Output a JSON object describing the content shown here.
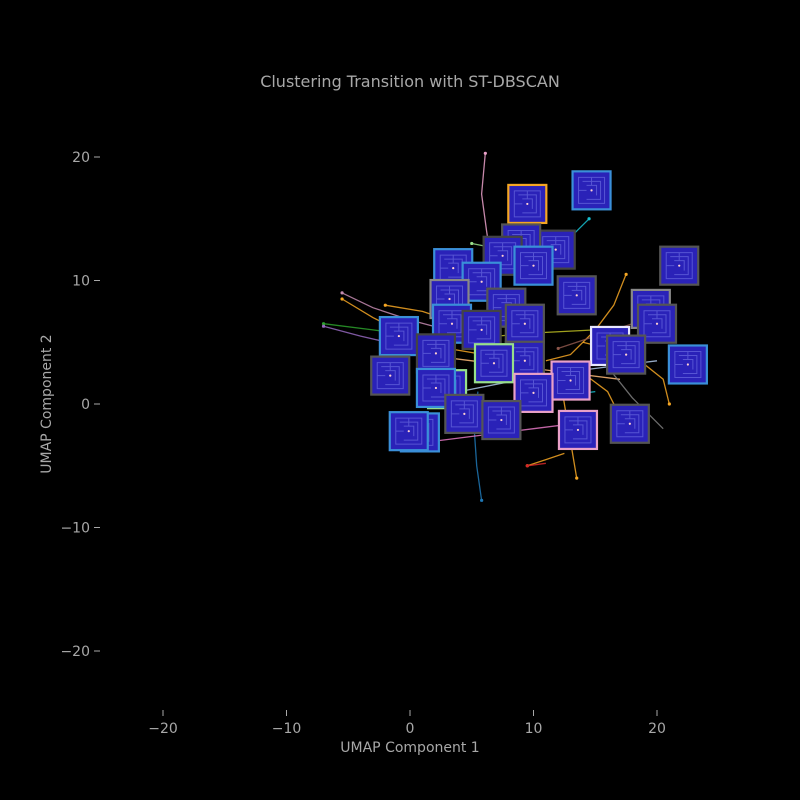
{
  "chart_data": {
    "type": "scatter",
    "title": "Clustering Transition with ST-DBSCAN",
    "xlabel": "UMAP Component 1",
    "ylabel": "UMAP Component 2",
    "xlim": [
      -25,
      25
    ],
    "ylim": [
      -25,
      25
    ],
    "xticks": [
      -20,
      -10,
      0,
      10,
      20
    ],
    "yticks": [
      -20,
      -10,
      0,
      10,
      20
    ],
    "xtick_labels": [
      "−20",
      "−10",
      "0",
      "10",
      "20"
    ],
    "ytick_labels": [
      "−20",
      "−10",
      "0",
      "10",
      "20"
    ],
    "grid": false,
    "background": "#000000",
    "text_color": "#a8a8a8",
    "thumbnail_fill": "#2a22b8",
    "trajectories": [
      {
        "color": "#f5a623",
        "points": [
          [
            -5.5,
            8.5
          ],
          [
            -3,
            7
          ],
          [
            0,
            5.5
          ],
          [
            3,
            4.5
          ],
          [
            6,
            4
          ]
        ]
      },
      {
        "color": "#f5a623",
        "points": [
          [
            17.5,
            10.5
          ],
          [
            16.5,
            8
          ],
          [
            15,
            6
          ],
          [
            13,
            4
          ],
          [
            11,
            3.5
          ]
        ]
      },
      {
        "color": "#f5a623",
        "points": [
          [
            13.5,
            -6
          ],
          [
            13,
            -3
          ],
          [
            12.5,
            0
          ],
          [
            12,
            3
          ]
        ]
      },
      {
        "color": "#f5a623",
        "points": [
          [
            21,
            0
          ],
          [
            20.5,
            2
          ],
          [
            18,
            4
          ],
          [
            14,
            5
          ]
        ]
      },
      {
        "color": "#f5a623",
        "points": [
          [
            9.5,
            -5
          ],
          [
            11,
            -4.5
          ],
          [
            12.5,
            -4
          ]
        ]
      },
      {
        "color": "#f5a623",
        "points": [
          [
            -2,
            8
          ],
          [
            1,
            7.5
          ],
          [
            4,
            6.5
          ]
        ]
      },
      {
        "color": "#f5a623",
        "points": [
          [
            17,
            -1
          ],
          [
            16,
            1
          ],
          [
            14,
            2.5
          ]
        ]
      },
      {
        "color": "#e9a0c8",
        "points": [
          [
            6.1,
            20.3
          ],
          [
            5.8,
            17
          ],
          [
            6.2,
            14
          ],
          [
            6.5,
            12
          ]
        ]
      },
      {
        "color": "#c48bb0",
        "points": [
          [
            -5.5,
            9
          ],
          [
            -3,
            7.8
          ],
          [
            0,
            6.8
          ],
          [
            3,
            6
          ]
        ]
      },
      {
        "color": "#1f77b4",
        "points": [
          [
            5.8,
            -7.8
          ],
          [
            5.4,
            -5
          ],
          [
            5.2,
            -2
          ],
          [
            5.5,
            1
          ]
        ]
      },
      {
        "color": "#2ca02c",
        "points": [
          [
            -7,
            6.5
          ],
          [
            -3,
            6
          ],
          [
            1,
            5.5
          ],
          [
            5,
            5
          ],
          [
            9,
            4.8
          ]
        ]
      },
      {
        "color": "#17becf",
        "points": [
          [
            14.5,
            15
          ],
          [
            13.5,
            14
          ],
          [
            12,
            12.5
          ],
          [
            10,
            11
          ]
        ]
      },
      {
        "color": "#98df8a",
        "points": [
          [
            5,
            13
          ],
          [
            7.5,
            12.5
          ],
          [
            10,
            12
          ],
          [
            12,
            11.5
          ]
        ]
      },
      {
        "color": "#ffbb78",
        "points": [
          [
            1,
            4
          ],
          [
            5,
            3.5
          ],
          [
            9,
            3
          ],
          [
            13,
            2.5
          ],
          [
            17,
            2
          ]
        ]
      },
      {
        "color": "#aec7e8",
        "points": [
          [
            4,
            1
          ],
          [
            8,
            1.8
          ],
          [
            12,
            2.5
          ],
          [
            16,
            3
          ],
          [
            20,
            3.5
          ]
        ]
      },
      {
        "color": "#9467bd",
        "points": [
          [
            -7,
            6.3
          ],
          [
            -4,
            5.5
          ],
          [
            -1,
            4.8
          ],
          [
            2,
            4.2
          ]
        ]
      },
      {
        "color": "#8c564b",
        "points": [
          [
            12,
            4.5
          ],
          [
            15,
            5.5
          ],
          [
            18,
            6.5
          ],
          [
            20.5,
            7
          ]
        ]
      },
      {
        "color": "#7f7f7f",
        "points": [
          [
            16,
            3
          ],
          [
            18,
            0.5
          ],
          [
            20.5,
            -2
          ]
        ]
      },
      {
        "color": "#bcbd22",
        "points": [
          [
            3,
            5
          ],
          [
            7,
            5.5
          ],
          [
            11,
            5.8
          ],
          [
            15,
            6
          ]
        ]
      },
      {
        "color": "#17becf",
        "points": [
          [
            3,
            -0.5
          ],
          [
            7,
            0
          ],
          [
            11,
            0.5
          ],
          [
            15,
            1
          ]
        ]
      },
      {
        "color": "#e377c2",
        "points": [
          [
            2,
            -3
          ],
          [
            6,
            -2.5
          ],
          [
            10,
            -2
          ],
          [
            14,
            -1.5
          ]
        ]
      },
      {
        "color": "#d62728",
        "points": [
          [
            9.5,
            -5
          ],
          [
            11,
            -4.8
          ]
        ]
      }
    ],
    "snapshots": [
      {
        "x": 9.5,
        "y": 16.2,
        "border": "#f5a623"
      },
      {
        "x": 14.7,
        "y": 17.3,
        "border": "#3a8fd8"
      },
      {
        "x": 11.8,
        "y": 12.5,
        "border": "#444444"
      },
      {
        "x": 9.0,
        "y": 13.0,
        "border": "#555555"
      },
      {
        "x": 7.5,
        "y": 12.0,
        "border": "#444444"
      },
      {
        "x": 10.0,
        "y": 11.2,
        "border": "#3a8fd8"
      },
      {
        "x": 3.5,
        "y": 11.0,
        "border": "#3a8fd8"
      },
      {
        "x": 5.8,
        "y": 9.9,
        "border": "#3a8fd8"
      },
      {
        "x": 21.8,
        "y": 11.2,
        "border": "#555555"
      },
      {
        "x": 13.5,
        "y": 8.8,
        "border": "#555555"
      },
      {
        "x": 3.2,
        "y": 8.5,
        "border": "#888888"
      },
      {
        "x": 7.8,
        "y": 7.8,
        "border": "#555555"
      },
      {
        "x": 9.3,
        "y": 6.5,
        "border": "#555555"
      },
      {
        "x": 3.4,
        "y": 6.5,
        "border": "#3a8fd8"
      },
      {
        "x": 5.8,
        "y": 6.0,
        "border": "#444444"
      },
      {
        "x": -0.9,
        "y": 5.5,
        "border": "#3a8fd8"
      },
      {
        "x": 19.5,
        "y": 7.7,
        "border": "#888888"
      },
      {
        "x": 20.0,
        "y": 6.5,
        "border": "#555555"
      },
      {
        "x": 16.2,
        "y": 4.7,
        "border": "#e8e8ff"
      },
      {
        "x": 17.5,
        "y": 4.0,
        "border": "#555555"
      },
      {
        "x": 2.1,
        "y": 4.1,
        "border": "#444444"
      },
      {
        "x": 9.3,
        "y": 3.5,
        "border": "#555555"
      },
      {
        "x": 6.8,
        "y": 3.3,
        "border": "#98df8a"
      },
      {
        "x": -1.6,
        "y": 2.3,
        "border": "#555555"
      },
      {
        "x": 13.0,
        "y": 1.9,
        "border": "#e9a0c8"
      },
      {
        "x": 22.5,
        "y": 3.2,
        "border": "#3a8fd8"
      },
      {
        "x": 3.0,
        "y": 1.2,
        "border": "#98df8a"
      },
      {
        "x": 2.1,
        "y": 1.3,
        "border": "#3a8fd8"
      },
      {
        "x": 10.0,
        "y": 0.9,
        "border": "#e9a0c8"
      },
      {
        "x": 4.4,
        "y": -0.8,
        "border": "#555555"
      },
      {
        "x": 7.4,
        "y": -1.3,
        "border": "#555555"
      },
      {
        "x": 17.8,
        "y": -1.6,
        "border": "#555555"
      },
      {
        "x": 13.6,
        "y": -2.1,
        "border": "#e9a0c8"
      },
      {
        "x": 0.8,
        "y": -2.3,
        "border": "#3a8fd8"
      },
      {
        "x": -0.1,
        "y": -2.2,
        "border": "#3a8fd8"
      }
    ]
  }
}
